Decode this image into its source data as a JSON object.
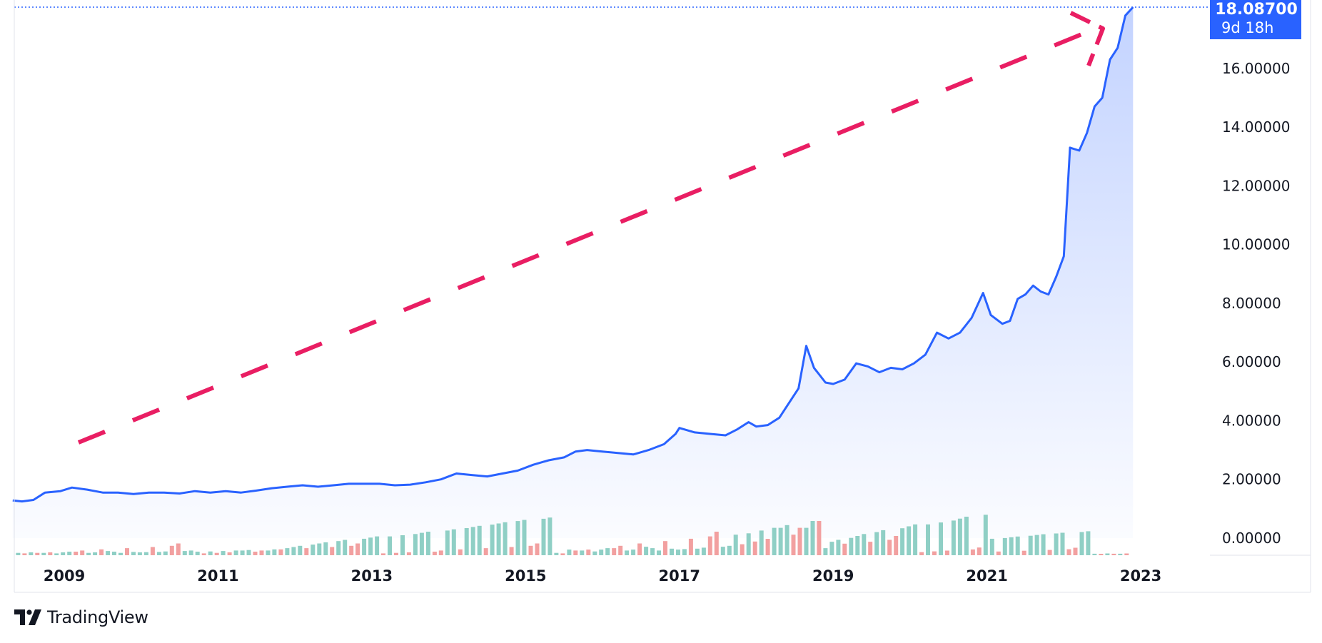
{
  "chart_data": {
    "type": "line",
    "title": "",
    "xlabel": "",
    "ylabel": "",
    "x_ticks": [
      "2009",
      "2011",
      "2013",
      "2015",
      "2017",
      "2019",
      "2021",
      "2023"
    ],
    "y_ticks": [
      "0.00000",
      "2.00000",
      "4.00000",
      "6.00000",
      "8.00000",
      "10.00000",
      "12.00000",
      "14.00000",
      "16.00000"
    ],
    "ylim": [
      0,
      18.4
    ],
    "xlim": [
      2008.35,
      2023.9
    ],
    "last_value_label": "18.08700",
    "countdown_label": "9d 18h",
    "colors": {
      "line": "#2962ff",
      "up_volume": "#8fcfc5",
      "down_volume": "#f2a0a0",
      "arrow": "#e91e63",
      "badge": "#2962ff"
    },
    "series": [
      {
        "values": [
          [
            2008.33,
            1.28
          ],
          [
            2008.45,
            1.25
          ],
          [
            2008.6,
            1.3
          ],
          [
            2008.75,
            1.55
          ],
          [
            2008.95,
            1.6
          ],
          [
            2009.1,
            1.72
          ],
          [
            2009.3,
            1.65
          ],
          [
            2009.5,
            1.55
          ],
          [
            2009.7,
            1.55
          ],
          [
            2009.9,
            1.5
          ],
          [
            2010.1,
            1.55
          ],
          [
            2010.3,
            1.55
          ],
          [
            2010.5,
            1.52
          ],
          [
            2010.7,
            1.6
          ],
          [
            2010.9,
            1.55
          ],
          [
            2011.1,
            1.6
          ],
          [
            2011.3,
            1.55
          ],
          [
            2011.5,
            1.62
          ],
          [
            2011.7,
            1.7
          ],
          [
            2011.9,
            1.75
          ],
          [
            2012.1,
            1.8
          ],
          [
            2012.3,
            1.75
          ],
          [
            2012.5,
            1.8
          ],
          [
            2012.7,
            1.85
          ],
          [
            2012.9,
            1.85
          ],
          [
            2013.1,
            1.85
          ],
          [
            2013.3,
            1.8
          ],
          [
            2013.5,
            1.82
          ],
          [
            2013.7,
            1.9
          ],
          [
            2013.9,
            2.0
          ],
          [
            2014.1,
            2.2
          ],
          [
            2014.3,
            2.15
          ],
          [
            2014.5,
            2.1
          ],
          [
            2014.7,
            2.2
          ],
          [
            2014.9,
            2.3
          ],
          [
            2015.1,
            2.5
          ],
          [
            2015.3,
            2.65
          ],
          [
            2015.5,
            2.75
          ],
          [
            2015.65,
            2.95
          ],
          [
            2015.8,
            3.0
          ],
          [
            2016.0,
            2.95
          ],
          [
            2016.2,
            2.9
          ],
          [
            2016.4,
            2.85
          ],
          [
            2016.6,
            3.0
          ],
          [
            2016.8,
            3.2
          ],
          [
            2016.95,
            3.55
          ],
          [
            2017.0,
            3.75
          ],
          [
            2017.2,
            3.6
          ],
          [
            2017.4,
            3.55
          ],
          [
            2017.6,
            3.5
          ],
          [
            2017.75,
            3.7
          ],
          [
            2017.9,
            3.95
          ],
          [
            2018.0,
            3.8
          ],
          [
            2018.15,
            3.85
          ],
          [
            2018.3,
            4.1
          ],
          [
            2018.45,
            4.7
          ],
          [
            2018.55,
            5.1
          ],
          [
            2018.65,
            6.55
          ],
          [
            2018.75,
            5.8
          ],
          [
            2018.9,
            5.3
          ],
          [
            2019.0,
            5.25
          ],
          [
            2019.15,
            5.4
          ],
          [
            2019.3,
            5.95
          ],
          [
            2019.45,
            5.85
          ],
          [
            2019.6,
            5.65
          ],
          [
            2019.75,
            5.8
          ],
          [
            2019.9,
            5.75
          ],
          [
            2020.05,
            5.95
          ],
          [
            2020.2,
            6.25
          ],
          [
            2020.35,
            7.0
          ],
          [
            2020.5,
            6.8
          ],
          [
            2020.65,
            7.0
          ],
          [
            2020.8,
            7.5
          ],
          [
            2020.95,
            8.35
          ],
          [
            2021.05,
            7.6
          ],
          [
            2021.2,
            7.3
          ],
          [
            2021.3,
            7.4
          ],
          [
            2021.4,
            8.15
          ],
          [
            2021.5,
            8.3
          ],
          [
            2021.6,
            8.6
          ],
          [
            2021.7,
            8.4
          ],
          [
            2021.8,
            8.3
          ],
          [
            2021.9,
            8.9
          ],
          [
            2022.0,
            9.6
          ],
          [
            2022.08,
            13.3
          ],
          [
            2022.2,
            13.2
          ],
          [
            2022.3,
            13.8
          ],
          [
            2022.4,
            14.7
          ],
          [
            2022.5,
            15.0
          ],
          [
            2022.6,
            16.3
          ],
          [
            2022.7,
            16.7
          ],
          [
            2022.8,
            17.8
          ],
          [
            2022.9,
            18.087
          ]
        ]
      }
    ],
    "volume": {
      "up": [
        0.1,
        0.12,
        0.1,
        0.08,
        0.12,
        0.15,
        0.1,
        0.12,
        0.18,
        0.15,
        0.1,
        0.14,
        0.12,
        0.13,
        0.14,
        0.16,
        0.18,
        0.2,
        0.15,
        0.16,
        0.18,
        0.2,
        0.2,
        0.22,
        0.2,
        0.25,
        0.3,
        0.35,
        0.4,
        0.45,
        0.5,
        0.55,
        0.6,
        0.65,
        0.7,
        0.75,
        0.8,
        0.8,
        0.85,
        0.9,
        0.95,
        1.0,
        1.05,
        1.1,
        1.15,
        1.2,
        1.25,
        1.3,
        1.35,
        1.4,
        1.45,
        1.5,
        1.55,
        1.6
      ],
      "down": [
        0.08,
        0.1,
        0.12,
        0.15,
        0.2,
        0.25,
        0.3,
        0.35,
        0.4,
        0.5
      ]
    }
  },
  "brand": {
    "name": "TradingView",
    "logo_icon": "tradingview-logo-icon"
  }
}
